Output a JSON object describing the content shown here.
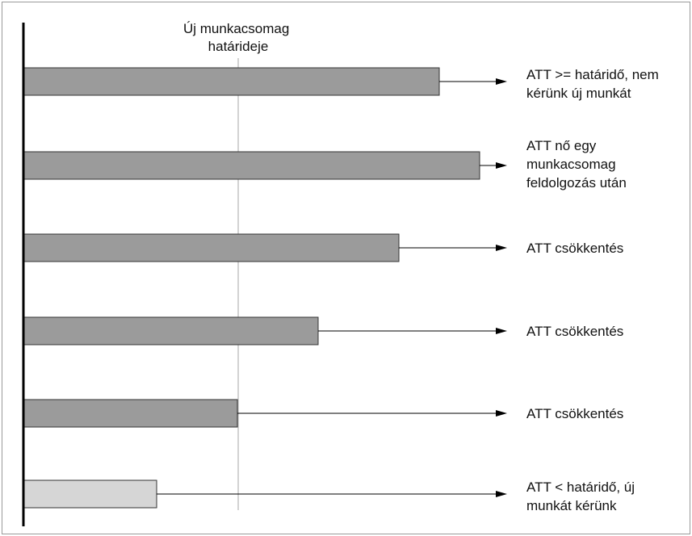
{
  "deadline_label": [
    "Új munkacsomag",
    "határideje"
  ],
  "rows": [
    {
      "fill": "dark",
      "label": [
        "ATT >= határidő, nem",
        "kérünk új munkát"
      ]
    },
    {
      "fill": "dark",
      "label": [
        "ATT nő egy",
        "munkacsomag",
        "feldolgozás után"
      ]
    },
    {
      "fill": "dark",
      "label": [
        "ATT csökkentés"
      ]
    },
    {
      "fill": "dark",
      "label": [
        "ATT csökkentés"
      ]
    },
    {
      "fill": "dark",
      "label": [
        "ATT csökkentés"
      ]
    },
    {
      "fill": "light",
      "label": [
        "ATT < határidő, új",
        "munkát kérünk"
      ]
    }
  ],
  "colors": {
    "dark": "#9b9b9b",
    "light": "#d6d6d6",
    "stroke": "#333333",
    "deadline": "#b5b5b5"
  }
}
